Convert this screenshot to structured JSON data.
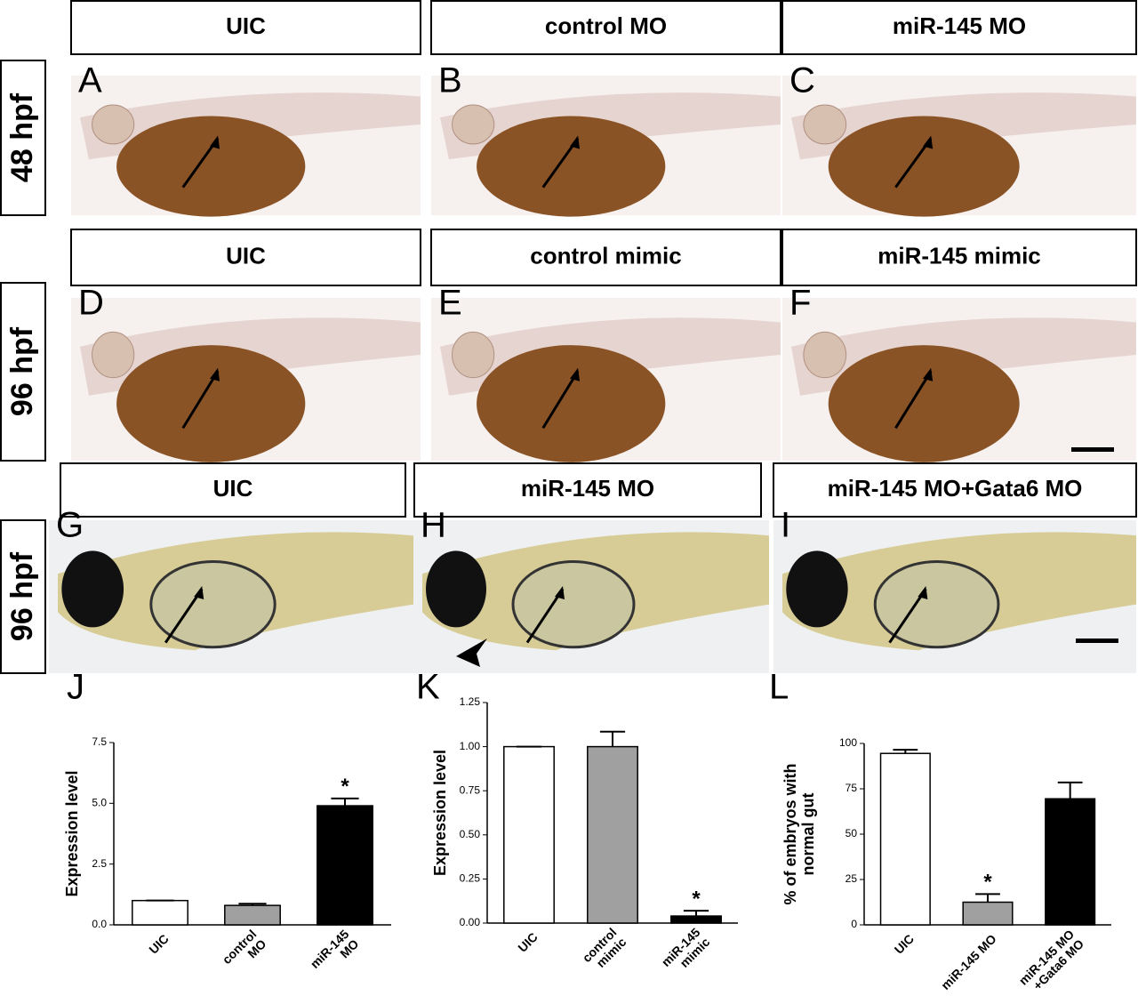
{
  "rows": [
    {
      "label": "48 hpf",
      "panels": [
        {
          "header": "UIC",
          "letter": "A"
        },
        {
          "header": "control MO",
          "letter": "B"
        },
        {
          "header": "miR-145 MO",
          "letter": "C"
        }
      ]
    },
    {
      "label": "96 hpf",
      "panels": [
        {
          "header": "UIC",
          "letter": "D"
        },
        {
          "header": "control mimic",
          "letter": "E"
        },
        {
          "header": "miR-145 mimic",
          "letter": "F"
        }
      ]
    },
    {
      "label": "96 hpf",
      "panels": [
        {
          "header": "UIC",
          "letter": "G"
        },
        {
          "header": "miR-145 MO",
          "letter": "H"
        },
        {
          "header": "miR-145 MO+Gata6 MO",
          "letter": "I"
        }
      ]
    }
  ],
  "chart_data": [
    {
      "type": "bar",
      "panel": "J",
      "ylabel": "Expression level",
      "categories": [
        "UIC",
        "control\nMO",
        "miR-145\nMO"
      ],
      "values": [
        1.0,
        0.8,
        4.9
      ],
      "errors": [
        0,
        0.07,
        0.3
      ],
      "colors": [
        "#ffffff",
        "#a0a0a0",
        "#000000"
      ],
      "ylim": [
        0,
        7.5
      ],
      "yticks": [
        {
          "value": 0,
          "label": "0.0"
        },
        {
          "value": 2.5,
          "label": "2.5"
        },
        {
          "value": 5,
          "label": "5.0"
        },
        {
          "value": 7.5,
          "label": "7.5"
        }
      ],
      "annotations": [
        {
          "text": "*",
          "x": "miR-145\nMO"
        }
      ]
    },
    {
      "type": "bar",
      "panel": "K",
      "ylabel": "Expression level",
      "categories": [
        "UIC",
        "control\nmimic",
        "miR-145\nmimic"
      ],
      "values": [
        1.0,
        1.0,
        0.04
      ],
      "errors": [
        0,
        0.085,
        0.03
      ],
      "colors": [
        "#ffffff",
        "#a0a0a0",
        "#000000"
      ],
      "ylim": [
        0,
        1.25
      ],
      "yticks": [
        {
          "value": 0,
          "label": "0.00"
        },
        {
          "value": 0.25,
          "label": "0.25"
        },
        {
          "value": 0.5,
          "label": "0.50"
        },
        {
          "value": 0.75,
          "label": "0.75"
        },
        {
          "value": 1,
          "label": "1.00"
        },
        {
          "value": 1.25,
          "label": "1.25"
        }
      ],
      "annotations": [
        {
          "text": "*",
          "x": "miR-145\nmimic"
        }
      ]
    },
    {
      "type": "bar",
      "panel": "L",
      "ylabel": "% of embryos with\nnormal gut",
      "categories": [
        "UIC",
        "miR-145 MO",
        "miR-145 MO\n+Gata6 MO"
      ],
      "values": [
        94.5,
        12.5,
        69.5
      ],
      "errors": [
        2,
        4.5,
        9
      ],
      "colors": [
        "#ffffff",
        "#a0a0a0",
        "#000000"
      ],
      "ylim": [
        0,
        100
      ],
      "yticks": [
        0,
        25,
        50,
        75,
        100
      ],
      "annotations": [
        {
          "text": "*",
          "x": "miR-145 MO"
        }
      ]
    }
  ]
}
